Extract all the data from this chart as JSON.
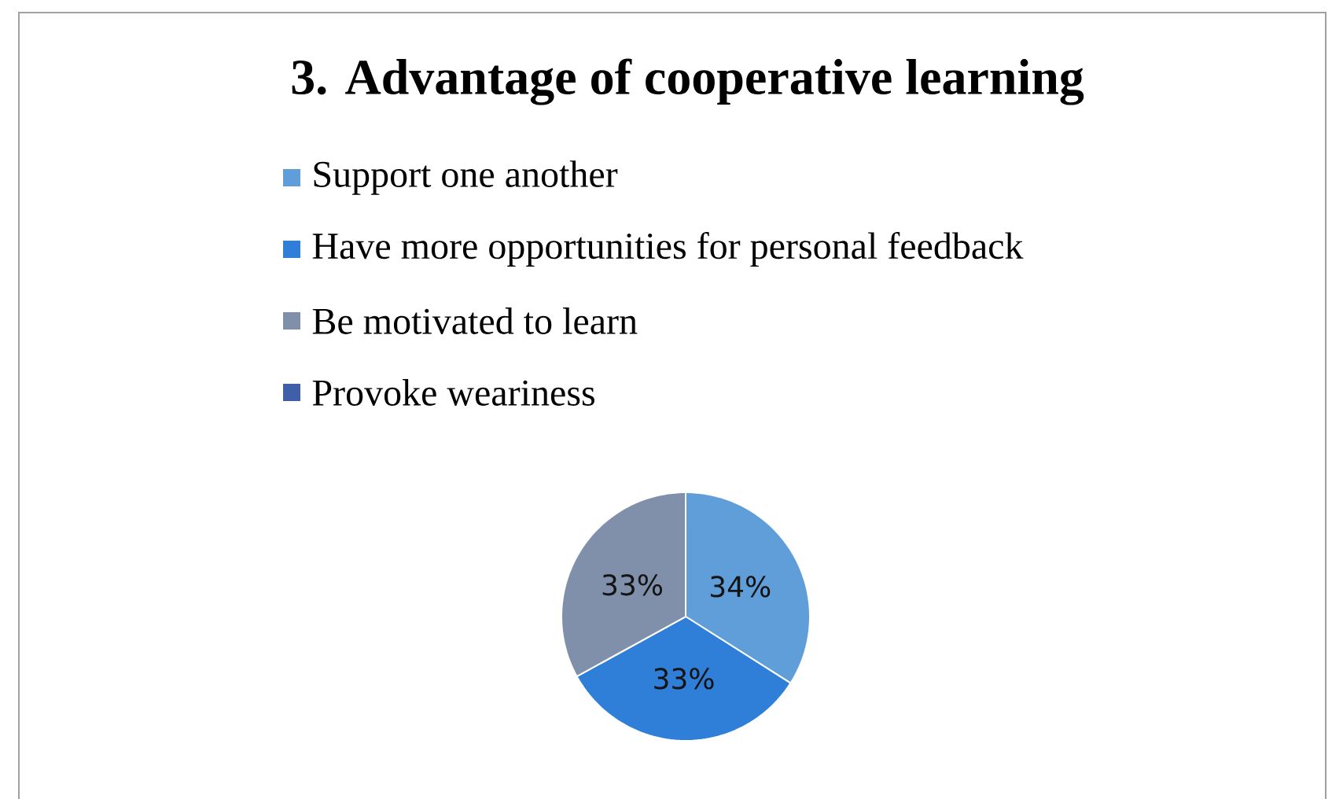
{
  "chart_data": {
    "type": "pie",
    "title": "3. Advantage of cooperative learning",
    "categories": [
      "Support one another",
      "Have more opportunities for personal feedback",
      "Be motivated to learn",
      "Provoke weariness"
    ],
    "values": [
      34,
      33,
      33,
      0
    ],
    "colors": [
      "#5f9ed8",
      "#2f7fd8",
      "#8090aa",
      "#3f5fa8"
    ],
    "value_labels": [
      "34%",
      "33%",
      "33%",
      null
    ],
    "legend": "top"
  }
}
